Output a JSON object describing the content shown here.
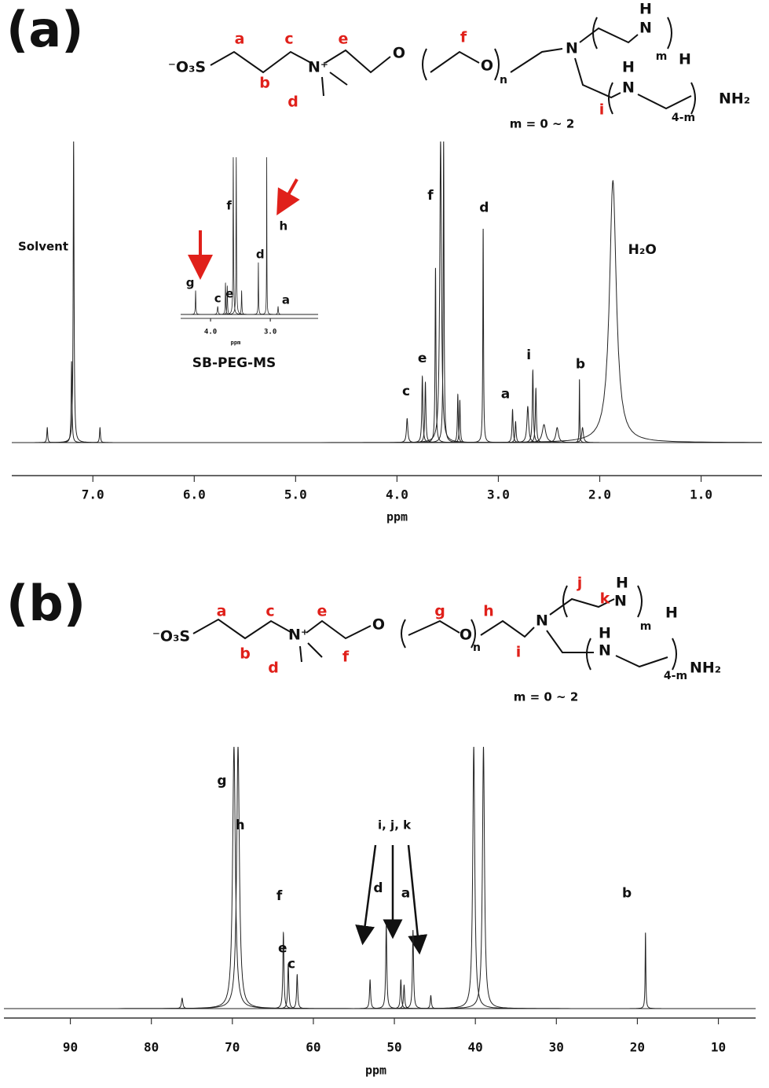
{
  "panel_labels": [
    "(a)",
    "(b)"
  ],
  "structures": [
    {
      "atoms": [
        "⁻O₃S",
        "N⁺",
        "O",
        "O",
        "n",
        "N",
        "N",
        "H",
        "m",
        "H",
        "N",
        "H",
        "4-m",
        "NH₂"
      ],
      "letters": [
        "a",
        "b",
        "c",
        "d",
        "e",
        "f",
        "i"
      ],
      "condition": "m = 0 ~ 2"
    },
    {
      "atoms": [
        "⁻O₃S",
        "N⁺",
        "O",
        "O",
        "n",
        "N",
        "N",
        "H",
        "m",
        "H",
        "N",
        "H",
        "4-m",
        "NH₂"
      ],
      "letters": [
        "a",
        "b",
        "c",
        "d",
        "e",
        "f",
        "g",
        "h",
        "i",
        "j",
        "k"
      ],
      "condition": "m = 0 ~ 2"
    }
  ],
  "chart_data": [
    {
      "type": "spectrum",
      "xlabel": "ppm",
      "xlim": [
        7.8,
        0.4
      ],
      "ylim": [
        0,
        100
      ],
      "xticks": [
        {
          "value": 7,
          "label": "7.0"
        },
        {
          "value": 6,
          "label": "6.0"
        },
        {
          "value": 5,
          "label": "5.0"
        },
        {
          "value": 4,
          "label": "4.0"
        },
        {
          "value": 3,
          "label": "3.0"
        },
        {
          "value": 2,
          "label": "2.0"
        },
        {
          "value": 1,
          "label": "1.0"
        }
      ],
      "peaks": {
        "x": [
          7.45,
          7.21,
          7.19,
          6.93,
          3.9,
          3.75,
          3.72,
          3.62,
          3.57,
          3.54,
          3.4,
          3.38,
          3.15,
          2.86,
          2.83,
          2.71,
          2.66,
          2.63,
          2.55,
          2.42,
          2.2,
          2.17,
          1.87
        ],
        "values": [
          5,
          27,
          100,
          5,
          8,
          22,
          20,
          58,
          100,
          100,
          16,
          14,
          71,
          11,
          7,
          12,
          24,
          18,
          6,
          5,
          21,
          5,
          87
        ],
        "widths": [
          0.005,
          0.005,
          0.005,
          0.005,
          0.008,
          0.006,
          0.006,
          0.005,
          0.01,
          0.005,
          0.005,
          0.005,
          0.004,
          0.006,
          0.006,
          0.01,
          0.006,
          0.006,
          0.02,
          0.015,
          0.003,
          0.01,
          0.04
        ]
      },
      "annotations": [
        {
          "text": "Solvent",
          "x": 7.49,
          "y": 65
        },
        {
          "text": "c",
          "x": 3.91,
          "y": 17
        },
        {
          "text": "e",
          "x": 3.75,
          "y": 28
        },
        {
          "text": "f",
          "x": 3.67,
          "y": 82
        },
        {
          "text": "d",
          "x": 3.14,
          "y": 78
        },
        {
          "text": "a",
          "x": 2.93,
          "y": 16
        },
        {
          "text": "i",
          "x": 2.7,
          "y": 29
        },
        {
          "text": "b",
          "x": 2.19,
          "y": 26
        },
        {
          "text": "H₂O",
          "x": 1.58,
          "y": 64
        }
      ]
    },
    {
      "type": "spectrum",
      "title": "SB-PEG-MS",
      "xlabel": "ppm",
      "xlim": [
        4.5,
        2.2
      ],
      "ylim": [
        0,
        100
      ],
      "xticks": [
        {
          "value": 4,
          "label": "4.0"
        },
        {
          "value": 3,
          "label": "3.0"
        }
      ],
      "peaks": {
        "x": [
          4.25,
          3.88,
          3.75,
          3.72,
          3.62,
          3.57,
          3.48,
          3.2,
          3.06,
          2.87
        ],
        "values": [
          15,
          5,
          20,
          18,
          100,
          100,
          15,
          33,
          100,
          5
        ],
        "widths": [
          0.005,
          0.008,
          0.005,
          0.005,
          0.005,
          0.005,
          0.005,
          0.004,
          0.003,
          0.006
        ]
      },
      "annotations": [
        {
          "text": "f",
          "x": 3.69,
          "y": 69
        },
        {
          "text": "h",
          "x": 2.78,
          "y": 56
        },
        {
          "text": "e",
          "x": 3.68,
          "y": 13
        },
        {
          "text": "d",
          "x": 3.17,
          "y": 38
        },
        {
          "text": "g",
          "x": 4.34,
          "y": 20
        },
        {
          "text": "c",
          "x": 3.88,
          "y": 10
        },
        {
          "text": "a",
          "x": 2.74,
          "y": 9
        }
      ]
    },
    {
      "type": "spectrum",
      "xlabel": "ppm",
      "xlim": [
        98.2,
        5.4
      ],
      "ylim": [
        0,
        100
      ],
      "xticks": [
        90,
        80,
        70,
        60,
        50,
        40,
        30,
        20,
        10
      ],
      "peaks": {
        "x": [
          76.2,
          69.8,
          69.3,
          63.7,
          63.1,
          62.0,
          53.0,
          51.0,
          49.2,
          48.8,
          47.7,
          45.5,
          40.2,
          39.0,
          19.0
        ],
        "values": [
          4,
          100,
          100,
          29,
          17,
          13,
          11,
          32,
          11,
          9,
          30,
          5,
          100,
          100,
          29
        ],
        "widths": [
          0.1,
          0.2,
          0.2,
          0.08,
          0.08,
          0.08,
          0.08,
          0.08,
          0.08,
          0.08,
          0.08,
          0.08,
          0.15,
          0.15,
          0.05
        ]
      },
      "annotations": [
        {
          "text": "g",
          "x": 71.3,
          "y": 87
        },
        {
          "text": "h",
          "x": 69.05,
          "y": 70
        },
        {
          "text": "f",
          "x": 64.2,
          "y": 43
        },
        {
          "text": "e",
          "x": 63.8,
          "y": 23
        },
        {
          "text": "c",
          "x": 62.7,
          "y": 17
        },
        {
          "text": "d",
          "x": 52.0,
          "y": 46
        },
        {
          "text": "a",
          "x": 48.6,
          "y": 44
        },
        {
          "text": "b",
          "x": 21.3,
          "y": 44
        },
        {
          "text": "i, j, k",
          "x": 50.0,
          "y": 70
        }
      ]
    }
  ]
}
